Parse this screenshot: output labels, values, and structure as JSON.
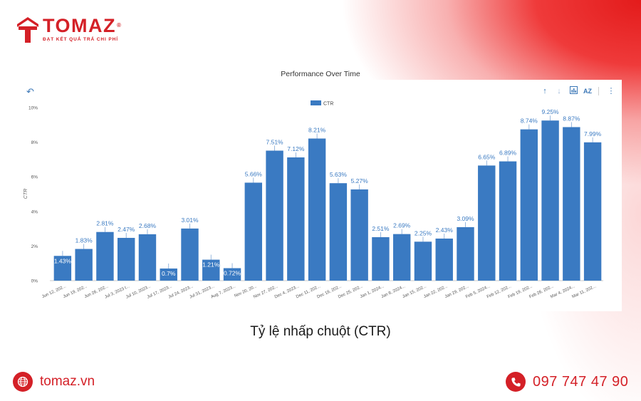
{
  "brand": {
    "name": "TOMAZ",
    "registered": "®",
    "tagline": "ĐẠT KẾT QUẢ TRẢ CHI PHÍ",
    "accent_color": "#d42027"
  },
  "toolbar": {
    "undo_icon": "undo-arrow-icon",
    "icons": [
      "sort-ascending-icon",
      "sort-descending-icon",
      "chart-options-icon",
      "sort-alpha-icon",
      "more-vertical-icon"
    ],
    "az_label": "AZ"
  },
  "caption": "Tỷ lệ nhấp chuột (CTR)",
  "footer": {
    "website": "tomaz.vn",
    "phone": "097 747 47 90"
  },
  "chart_data": {
    "type": "bar",
    "title": "Performance Over Time",
    "ylabel": "CTR",
    "xlabel": "",
    "ylim": [
      0,
      10
    ],
    "yticks": [
      "0%",
      "2%",
      "4%",
      "6%",
      "8%",
      "10%"
    ],
    "grid": false,
    "legend_position": "top-center",
    "bar_color": "#3a7ac2",
    "series": [
      {
        "name": "CTR",
        "values": [
          1.43,
          1.83,
          2.81,
          2.47,
          2.68,
          0.7,
          3.01,
          1.21,
          0.72,
          5.66,
          7.51,
          7.12,
          8.21,
          5.63,
          5.27,
          2.51,
          2.69,
          2.25,
          2.43,
          3.09,
          6.65,
          6.89,
          8.74,
          9.25,
          8.87,
          7.99
        ],
        "labels": [
          "1.43%",
          "1.83%",
          "2.81%",
          "2.47%",
          "2.68%",
          "0.7%",
          "3.01%",
          "1.21%",
          "0.72%",
          "5.66%",
          "7.51%",
          "7.12%",
          "8.21%",
          "5.63%",
          "5.27%",
          "2.51%",
          "2.69%",
          "2.25%",
          "2.43%",
          "3.09%",
          "6.65%",
          "6.89%",
          "8.74%",
          "9.25%",
          "8.87%",
          "7.99%"
        ]
      }
    ],
    "categories": [
      "Jun 12, 202...",
      "Jun 19, 202...",
      "Jun 26, 202...",
      "Jul 3, 2023 t...",
      "Jul 10, 2023...",
      "Jul 17, 2023...",
      "Jul 24, 2023...",
      "Jul 31, 2023...",
      "Aug 7, 2023...",
      "Nov 20, 20...",
      "Nov 27, 202...",
      "Dec 4, 2023...",
      "Dec 11, 202...",
      "Dec 18, 202...",
      "Dec 25, 202...",
      "Jan 1, 2024...",
      "Jan 8, 2024...",
      "Jan 15, 202...",
      "Jan 22, 202...",
      "Jan 29, 202...",
      "Feb 5, 2024...",
      "Feb 12, 202...",
      "Feb 19, 202...",
      "Feb 26, 202...",
      "Mar 4, 2024...",
      "Mar 11, 202..."
    ]
  }
}
